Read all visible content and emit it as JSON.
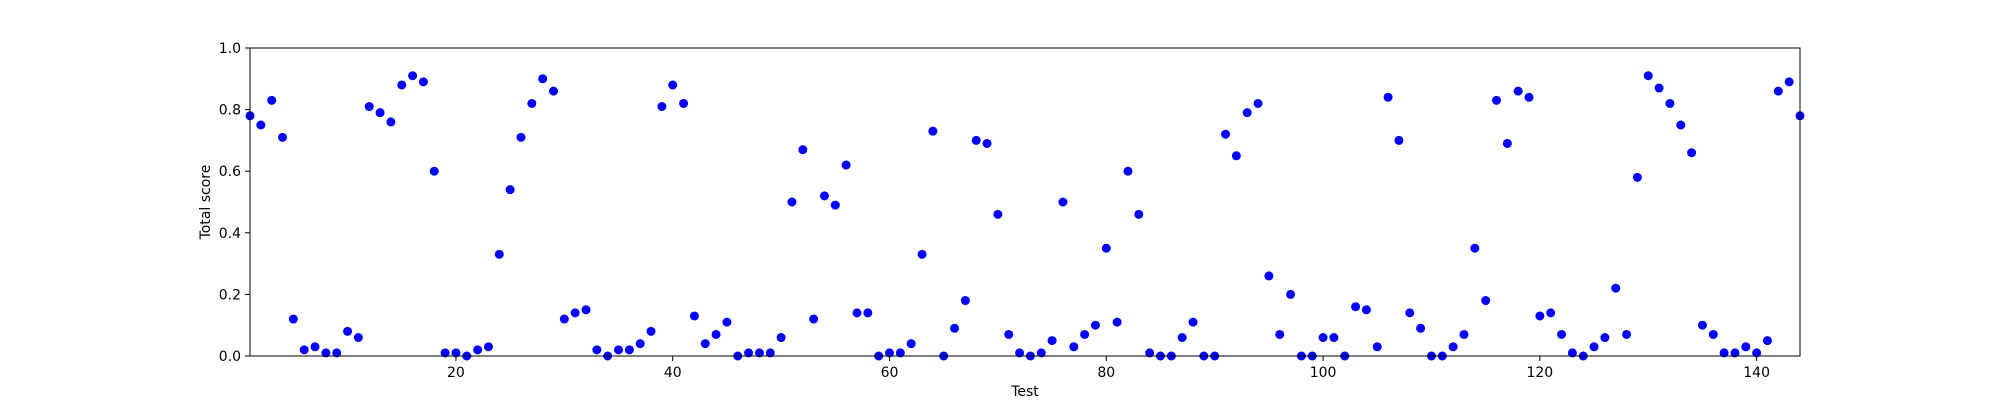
{
  "chart_data": {
    "type": "scatter",
    "xlabel": "Test",
    "ylabel": "Total score",
    "xlim": [
      1,
      144
    ],
    "ylim": [
      0.0,
      1.0
    ],
    "x_ticks": [
      20,
      40,
      60,
      80,
      100,
      120,
      140
    ],
    "x_tick_labels": [
      "20",
      "40",
      "60",
      "80",
      "100",
      "120",
      "140"
    ],
    "y_ticks": [
      0.0,
      0.2,
      0.4,
      0.6,
      0.8,
      1.0
    ],
    "y_tick_labels": [
      "0.0",
      "0.2",
      "0.4",
      "0.6",
      "0.8",
      "1.0"
    ],
    "grid": false,
    "marker_color": "#0000ff",
    "x": [
      1,
      2,
      3,
      4,
      5,
      6,
      7,
      8,
      9,
      10,
      11,
      12,
      13,
      14,
      15,
      16,
      17,
      18,
      19,
      20,
      21,
      22,
      23,
      24,
      25,
      26,
      27,
      28,
      29,
      30,
      31,
      32,
      33,
      34,
      35,
      36,
      37,
      38,
      39,
      40,
      41,
      42,
      43,
      44,
      45,
      46,
      47,
      48,
      49,
      50,
      51,
      52,
      53,
      54,
      55,
      56,
      57,
      58,
      59,
      60,
      61,
      62,
      63,
      64,
      65,
      66,
      67,
      68,
      69,
      70,
      71,
      72,
      73,
      74,
      75,
      76,
      77,
      78,
      79,
      80,
      81,
      82,
      83,
      84,
      85,
      86,
      87,
      88,
      89,
      90,
      91,
      92,
      93,
      94,
      95,
      96,
      97,
      98,
      99,
      100,
      101,
      102,
      103,
      104,
      105,
      106,
      107,
      108,
      109,
      110,
      111,
      112,
      113,
      114,
      115,
      116,
      117,
      118,
      119,
      120,
      121,
      122,
      123,
      124,
      125,
      126,
      127,
      128,
      129,
      130,
      131,
      132,
      133,
      134,
      135,
      136,
      137,
      138,
      139,
      140,
      141,
      142,
      143,
      144
    ],
    "y": [
      0.78,
      0.75,
      0.83,
      0.71,
      0.12,
      0.02,
      0.03,
      0.01,
      0.01,
      0.08,
      0.06,
      0.81,
      0.79,
      0.76,
      0.88,
      0.91,
      0.89,
      0.6,
      0.01,
      0.01,
      0.0,
      0.02,
      0.03,
      0.33,
      0.54,
      0.71,
      0.82,
      0.9,
      0.86,
      0.12,
      0.14,
      0.15,
      0.02,
      0.0,
      0.02,
      0.02,
      0.04,
      0.08,
      0.81,
      0.88,
      0.82,
      0.13,
      0.04,
      0.07,
      0.11,
      0.0,
      0.01,
      0.01,
      0.01,
      0.06,
      0.5,
      0.67,
      0.12,
      0.52,
      0.49,
      0.62,
      0.14,
      0.14,
      0.0,
      0.01,
      0.01,
      0.04,
      0.33,
      0.73,
      0.0,
      0.09,
      0.18,
      0.7,
      0.69,
      0.46,
      0.07,
      0.01,
      0.0,
      0.01,
      0.05,
      0.5,
      0.03,
      0.07,
      0.1,
      0.35,
      0.11,
      0.6,
      0.46,
      0.01,
      0.0,
      0.0,
      0.06,
      0.11,
      0.0,
      0.0,
      0.72,
      0.65,
      0.79,
      0.82,
      0.26,
      0.07,
      0.2,
      0.0,
      0.0,
      0.06,
      0.06,
      0.0,
      0.16,
      0.15,
      0.03,
      0.84,
      0.7,
      0.14,
      0.09,
      0.0,
      0.0,
      0.03,
      0.07,
      0.35,
      0.18,
      0.83,
      0.69,
      0.86,
      0.84,
      0.13,
      0.14,
      0.07,
      0.01,
      0.0,
      0.03,
      0.06,
      0.22,
      0.07,
      0.58,
      0.91,
      0.87,
      0.82,
      0.75,
      0.66,
      0.1,
      0.07,
      0.01,
      0.01,
      0.03,
      0.01,
      0.05,
      0.86,
      0.89,
      0.78
    ]
  }
}
